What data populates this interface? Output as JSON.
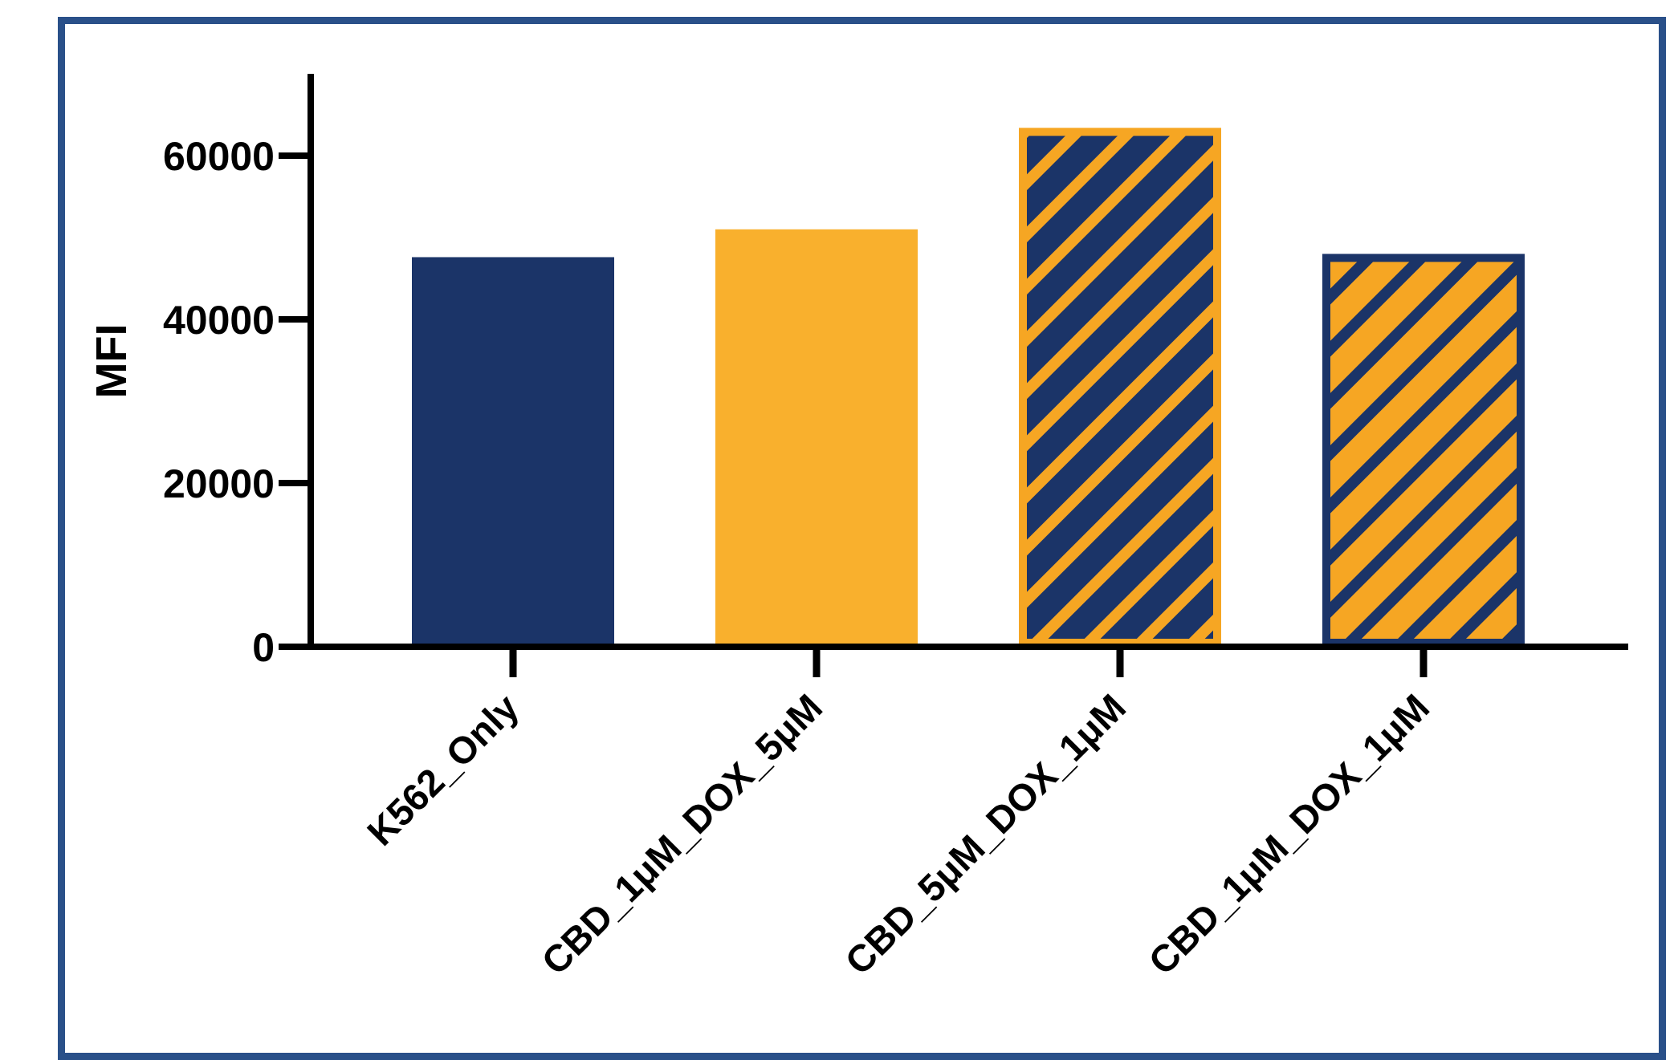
{
  "chart_data": {
    "type": "bar",
    "title": "",
    "xlabel": "",
    "ylabel": "MFI",
    "ylim": [
      0,
      70000
    ],
    "yticks": [
      0,
      20000,
      40000,
      60000
    ],
    "grid": false,
    "legend": "none",
    "categories": [
      "K562_Only",
      "CBD_1μM_DOX_5μM",
      "CBD_5μM_DOX_1μM",
      "CBD_1μM_DOX_1μM"
    ],
    "values": [
      47600,
      51000,
      63400,
      48000
    ],
    "styles": [
      {
        "fill": "#1b3468",
        "hatch": "",
        "outline": ""
      },
      {
        "fill": "#f9b02d",
        "hatch": "",
        "outline": ""
      },
      {
        "fill": "#1b3468",
        "hatch": "#f6a623",
        "outline": "#f6a623"
      },
      {
        "fill": "#f6a623",
        "hatch": "#1b3468",
        "outline": "#1b3468"
      }
    ]
  }
}
